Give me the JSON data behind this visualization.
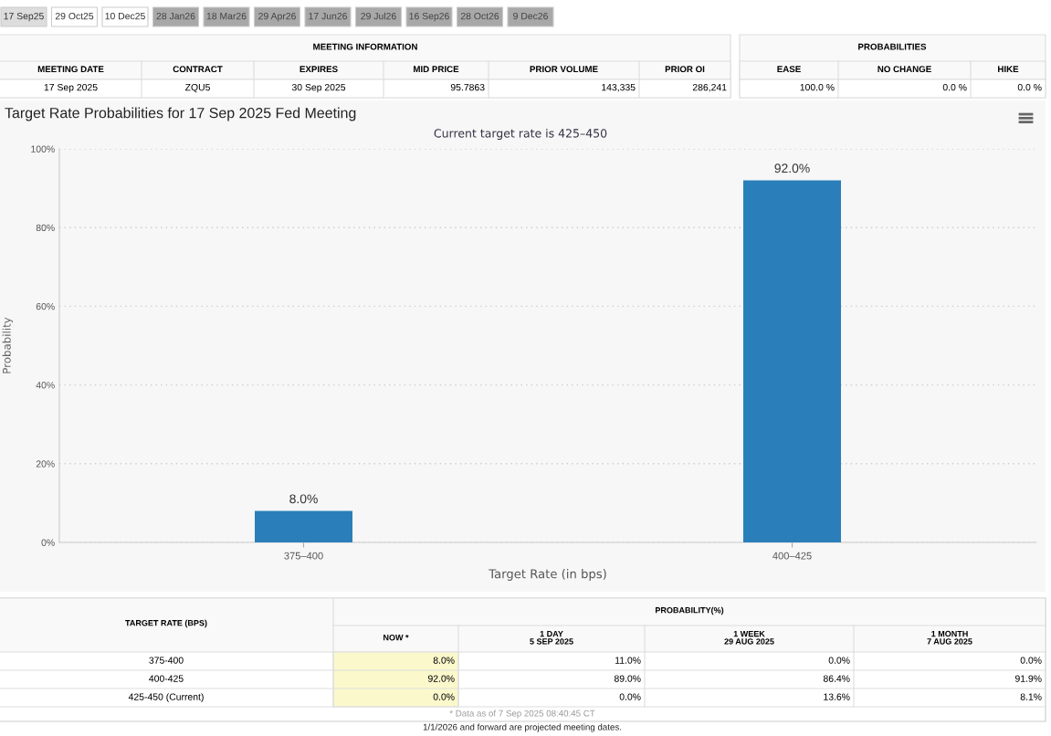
{
  "chart_data": [
    {
      "type": "other",
      "annotations": [
        "17 Sep25",
        "29 Oct25",
        "10 Dec25",
        "28 Jan26",
        "18 Mar26",
        "29 Apr26",
        "17 Jun26",
        "29 Jul26",
        "16 Sep26",
        "28 Oct26",
        "9 Dec26",
        "MEETING INFORMATION",
        "MEETING DATE",
        "CONTRACT",
        "EXPIRES",
        "MID PRICE",
        "PRIOR VOLUME",
        "PRIOR OI",
        "17 Sep 2025",
        "ZQU5",
        "30 Sep 2025",
        "95.7863",
        "143,335",
        "286,241",
        "PROBABILITIES",
        "EASE",
        "NO CHANGE",
        "HIKE",
        "100.0 %",
        "0.0 %",
        "0.0 %"
      ]
    },
    {
      "type": "bar",
      "title": "Target Rate Probabilities for 17 Sep 2025 Fed Meeting",
      "subtitle": "Current target rate is 425–450",
      "xlabel": "Target Rate (in bps)",
      "ylabel": "Probability",
      "categories": [
        "375–400",
        "400–425"
      ],
      "values": [
        8.0,
        92.0
      ],
      "value_labels": [
        "8.0%",
        "92.0%"
      ],
      "color": "#2a7fba",
      "ylim": [
        0,
        100
      ],
      "yticks": [
        {
          "value": 0,
          "label": "0%"
        },
        {
          "value": 20,
          "label": "20%"
        },
        {
          "value": 40,
          "label": "40%"
        },
        {
          "value": 60,
          "label": "60%"
        },
        {
          "value": 80,
          "label": "80%"
        },
        {
          "value": 100,
          "label": "100%"
        }
      ],
      "grid": "y",
      "legend": false
    },
    {
      "type": "other",
      "annotations": [
        "TARGET RATE (BPS)",
        "PROBABILITY(%)",
        "NOW *",
        "1 DAY\n5 SEP 2025",
        "1 WEEK\n29 AUG 2025",
        "1 MONTH\n7 AUG 2025",
        "375-400",
        "8.0%",
        "11.0%",
        "0.0%",
        "0.0%",
        "400-425",
        "92.0%",
        "89.0%",
        "86.4%",
        "91.9%",
        "425-450 (Current)",
        "0.0%",
        "0.0%",
        "13.6%",
        "8.1%",
        "* Data as of 7 Sep 2025 08:40:45 CT",
        "1/1/2026 and forward are projected meeting dates."
      ]
    }
  ]
}
